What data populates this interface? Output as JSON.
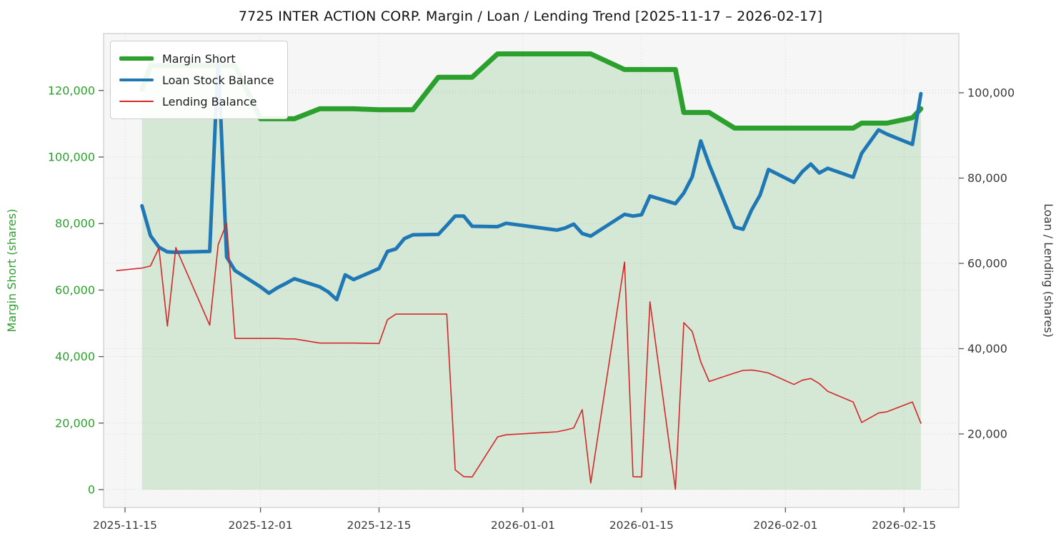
{
  "title": "7725 INTER ACTION CORP. Margin / Loan / Lending Trend [2025-11-17 – 2026-02-17]",
  "legend": {
    "items": [
      {
        "label": "Margin Short",
        "color": "#2ca02c",
        "thickness": 6
      },
      {
        "label": "Loan Stock Balance",
        "color": "#1f77b4",
        "thickness": 4
      },
      {
        "label": "Lending Balance",
        "color": "#d62728",
        "thickness": 2
      }
    ]
  },
  "axes": {
    "left": {
      "label": "Margin Short (shares)",
      "color": "#2ca02c",
      "tick_values": [
        0,
        20000,
        40000,
        60000,
        80000,
        100000,
        120000
      ],
      "tick_labels": [
        "0",
        "20,000",
        "40,000",
        "60,000",
        "80,000",
        "100,000",
        "120,000"
      ]
    },
    "right": {
      "label": "Loan / Lending (shares)",
      "color": "#3a3a3a",
      "tick_values": [
        20000,
        40000,
        60000,
        80000,
        100000
      ],
      "tick_labels": [
        "20,000",
        "40,000",
        "60,000",
        "80,000",
        "100,000"
      ]
    },
    "x": {
      "tick_dates": [
        "2025-11-15",
        "2025-12-01",
        "2025-12-15",
        "2026-01-01",
        "2026-01-15",
        "2026-02-01",
        "2026-02-15"
      ],
      "tick_labels": [
        "2025-11-15",
        "2025-12-01",
        "2025-12-15",
        "2026-01-01",
        "2026-01-15",
        "2026-02-01",
        "2026-02-15"
      ]
    }
  },
  "chart_data": {
    "type": "line",
    "title": "7725 INTER ACTION CORP. Margin / Loan / Lending Trend [2025-11-17 – 2026-02-17]",
    "grid": "dotted, both axes",
    "legend_position": "upper-left",
    "left_axis_range_approx": [
      0,
      137000
    ],
    "right_axis_range_approx": [
      2800,
      114000
    ],
    "x_dates": [
      "2025-11-14",
      "2025-11-17",
      "2025-11-18",
      "2025-11-19",
      "2025-11-20",
      "2025-11-21",
      "2025-11-25",
      "2025-11-26",
      "2025-11-27",
      "2025-11-28",
      "2025-12-01",
      "2025-12-02",
      "2025-12-03",
      "2025-12-04",
      "2025-12-05",
      "2025-12-08",
      "2025-12-09",
      "2025-12-10",
      "2025-12-11",
      "2025-12-12",
      "2025-12-15",
      "2025-12-16",
      "2025-12-17",
      "2025-12-18",
      "2025-12-19",
      "2025-12-22",
      "2025-12-23",
      "2025-12-24",
      "2025-12-25",
      "2025-12-26",
      "2025-12-29",
      "2025-12-30",
      "2026-01-05",
      "2026-01-06",
      "2026-01-07",
      "2026-01-08",
      "2026-01-09",
      "2026-01-13",
      "2026-01-14",
      "2026-01-15",
      "2026-01-16",
      "2026-01-19",
      "2026-01-20",
      "2026-01-21",
      "2026-01-22",
      "2026-01-23",
      "2026-01-26",
      "2026-01-27",
      "2026-01-28",
      "2026-01-29",
      "2026-01-30",
      "2026-02-02",
      "2026-02-03",
      "2026-02-04",
      "2026-02-05",
      "2026-02-06",
      "2026-02-09",
      "2026-02-10",
      "2026-02-12",
      "2026-02-13",
      "2026-02-16",
      "2026-02-17"
    ],
    "series": [
      {
        "name": "Margin Short",
        "axis": "left",
        "color": "#2ca02c",
        "width": 7,
        "area_fill": true,
        "area_opacity": 0.16,
        "values": [
          null,
          120400,
          127500,
          127500,
          127500,
          127500,
          127500,
          127500,
          127500,
          127500,
          111500,
          111500,
          111500,
          111500,
          111500,
          114500,
          114500,
          114500,
          114500,
          114500,
          114200,
          114200,
          114200,
          114200,
          114200,
          124000,
          124000,
          124000,
          124000,
          124000,
          131000,
          131000,
          131000,
          131000,
          131000,
          131000,
          131000,
          126300,
          126300,
          126300,
          126300,
          126300,
          113400,
          113400,
          113400,
          113400,
          108700,
          108700,
          108700,
          108700,
          108700,
          108700,
          108700,
          108700,
          108700,
          108700,
          108700,
          110200,
          110200,
          110200,
          111800,
          114500
        ]
      },
      {
        "name": "Loan Stock Balance",
        "axis": "right",
        "color": "#1f77b4",
        "width": 5,
        "values": [
          null,
          73500,
          66500,
          63800,
          62700,
          62600,
          62800,
          108700,
          61500,
          58300,
          54500,
          53000,
          54300,
          55300,
          56400,
          54500,
          53300,
          51500,
          57300,
          56200,
          58800,
          62800,
          63400,
          65800,
          66700,
          66800,
          68900,
          71100,
          71100,
          68700,
          68600,
          69400,
          67800,
          68300,
          69200,
          67000,
          66400,
          71500,
          71100,
          71400,
          75800,
          74000,
          76500,
          80300,
          88700,
          83200,
          68500,
          68000,
          72500,
          76000,
          82000,
          79000,
          81500,
          83300,
          81200,
          82300,
          80200,
          85800,
          91300,
          90300,
          87900,
          99800
        ]
      },
      {
        "name": "Lending Balance",
        "axis": "right",
        "color": "#d62728",
        "width": 1.6,
        "values": [
          58300,
          58900,
          59400,
          63600,
          45300,
          63700,
          45500,
          64400,
          69400,
          42400,
          42400,
          42400,
          42400,
          42300,
          42300,
          41300,
          41300,
          41300,
          41300,
          41300,
          41200,
          46800,
          48100,
          48100,
          48100,
          48100,
          48100,
          11600,
          10000,
          9900,
          19300,
          19800,
          20500,
          20900,
          21400,
          25700,
          8500,
          60300,
          10000,
          9900,
          51000,
          7000,
          46100,
          44000,
          36900,
          32300,
          34300,
          34900,
          35000,
          34700,
          34300,
          31600,
          32600,
          33000,
          31800,
          30000,
          27500,
          22700,
          24900,
          25200,
          27500,
          22500
        ]
      }
    ]
  },
  "colors": {
    "plot_background": "#f6f6f7",
    "figure_background": "#ffffff",
    "gridline": "#d4d4d4",
    "spine": "#cccccc",
    "title_text": "#111111",
    "x_tick_text": "#3a3a3a"
  }
}
